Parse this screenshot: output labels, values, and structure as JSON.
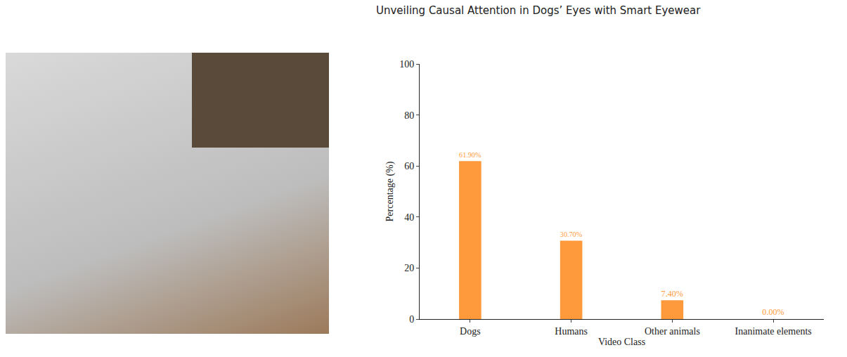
{
  "header": {
    "text": "Unveiling Causal Attention in Dogs’ Eyes with Smart Eyewear"
  },
  "chart_data": {
    "type": "bar",
    "x_label": "Video Class",
    "y_label": "Percentage (%)",
    "categories": [
      "Dogs",
      "Humans",
      "Other animals",
      "Inanimate elements"
    ],
    "values": [
      61.9,
      30.7,
      7.4,
      0
    ],
    "value_labels": [
      "61.90%",
      "30.70%",
      "7.40%",
      "0.00%"
    ],
    "color": "#ff9a3c",
    "ylim": [
      0,
      100
    ],
    "yticks": [
      0,
      20,
      40,
      60,
      80,
      100
    ],
    "grid": false,
    "data_labels": true
  }
}
